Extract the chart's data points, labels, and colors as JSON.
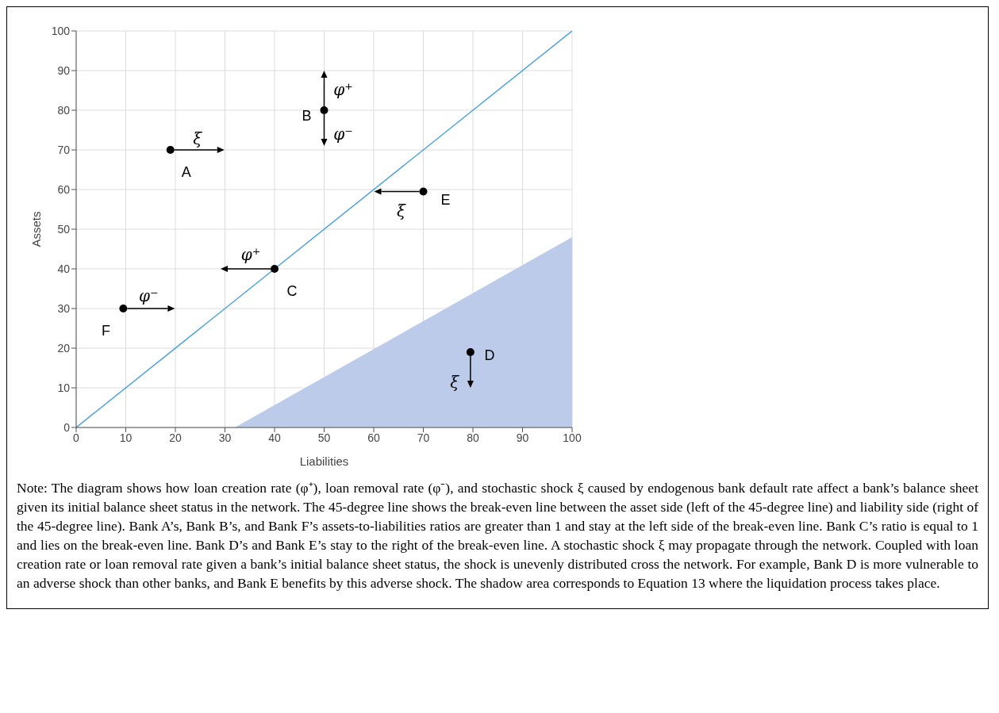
{
  "chart_data": {
    "type": "scatter",
    "xlabel": "Liabilities",
    "ylabel": "Assets",
    "xlim": [
      0,
      100
    ],
    "ylim": [
      0,
      100
    ],
    "xticks": [
      0,
      10,
      20,
      30,
      40,
      50,
      60,
      70,
      80,
      90,
      100
    ],
    "yticks": [
      0,
      10,
      20,
      30,
      40,
      50,
      60,
      70,
      80,
      90,
      100
    ],
    "grid": true,
    "series": [
      {
        "type": "area",
        "color": "#bccbea",
        "x": [
          32,
          100
        ],
        "values": [
          0,
          48
        ]
      },
      {
        "type": "line",
        "color": "#4ea3da",
        "marker": "none",
        "x": [
          0,
          100
        ],
        "values": [
          0,
          100
        ]
      },
      {
        "color": "#000000",
        "marker": "circle",
        "x": [
          19,
          50,
          40,
          79.5,
          70,
          9.5
        ],
        "values": [
          70,
          80,
          40,
          19,
          59.5,
          30
        ]
      }
    ],
    "annotations": [
      {
        "text": "A",
        "x": 19,
        "y": 70
      },
      {
        "text": "B",
        "x": 50,
        "y": 80
      },
      {
        "text": "C",
        "x": 40,
        "y": 40
      },
      {
        "text": "D",
        "x": 79.5,
        "y": 19
      },
      {
        "text": "E",
        "x": 70,
        "y": 59.5
      },
      {
        "text": "F",
        "x": 9.5,
        "y": 30
      },
      "ξ",
      "φ⁺",
      "φ⁻",
      "φ⁺",
      "ξ",
      "ξ",
      "φ⁻",
      "Note: The diagram shows how loan creation rate (φ⁺), loan removal rate (φ⁻), and stochastic shock ξ caused by endogenous bank default rate affect a bank’s balance sheet given its initial balance sheet status in the network. The 45-degree line shows the break-even line between the asset side (left of the 45-degree line) and liability side (right of the 45-degree line). Bank A’s, Bank B’s, and Bank F’s assets-to-liabilities ratios are greater than 1 and stay at the left side of the break-even line. Bank C’s ratio is equal to 1 and lies on the break-even line. Bank D’s and Bank E’s stay to the right of the break-even line. A stochastic shock ξ may propagate through the network. Coupled with loan creation rate or loan removal rate given a bank’s initial balance sheet status, the shock is unevenly distributed cross the network. For example, Bank D is more vulnerable to an adverse shock than other banks, and Bank E benefits by this adverse shock. The shadow area corresponds to Equation 13 where the liquidation process takes place."
    ]
  }
}
